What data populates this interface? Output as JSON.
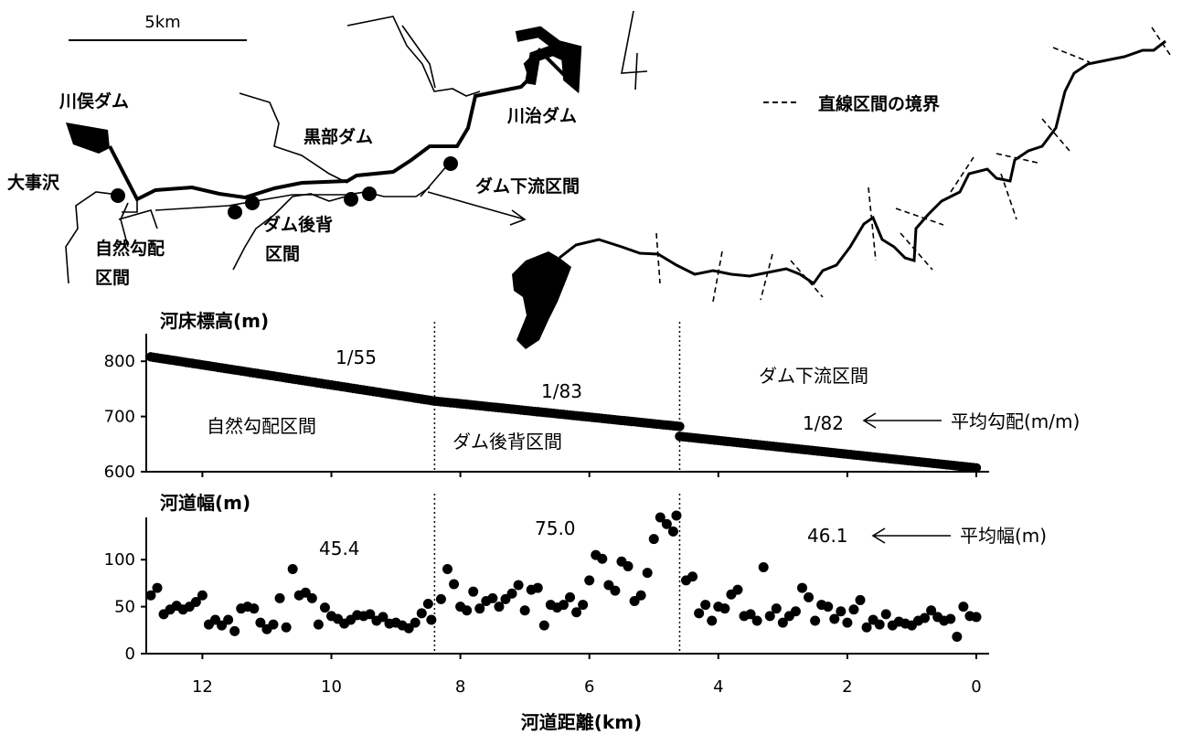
{
  "map": {
    "scale_label": "5km",
    "figure_number": "4",
    "legend_boundary": "直線区間の境界",
    "places": {
      "kawamata_dam": "川俣ダム",
      "kurobe_dam": "黒部ダム",
      "kawaji_dam": "川治ダム",
      "daijisawa": "大事沢",
      "dam_downstream_section": "ダム下流区間",
      "dam_backwater_section_l1": "ダム後背",
      "dam_backwater_section_l2": "区間",
      "natural_gradient_section_l1": "自然勾配",
      "natural_gradient_section_l2": "区間"
    }
  },
  "colors": {
    "ink": "#000000",
    "background": "#ffffff"
  },
  "chart_data": [
    {
      "type": "scatter",
      "title": "河床標高(m)",
      "xlabel": "河道距離(km)",
      "ylabel": "河床標高(m)",
      "xlim": [
        12.8,
        -0.2
      ],
      "ylim": [
        600,
        850
      ],
      "x_reversed": true,
      "yticks": [
        600,
        700,
        800
      ],
      "xticks": [
        12,
        10,
        8,
        6,
        4,
        2,
        0
      ],
      "boundaries_km": [
        8.4,
        4.6
      ],
      "sections": [
        {
          "name": "自然勾配区間",
          "x_start": 12.8,
          "x_end": 8.4,
          "gradient_label": "1/55"
        },
        {
          "name": "ダム後背区間",
          "x_start": 8.4,
          "x_end": 4.6,
          "gradient_label": "1/83"
        },
        {
          "name": "ダム下流区間",
          "x_start": 4.6,
          "x_end": 0.0,
          "gradient_label": "1/82"
        }
      ],
      "annotation": "平均勾配(m/m)",
      "series": [
        {
          "points": [
            [
              12.8,
              808
            ],
            [
              8.4,
              728
            ],
            [
              8.4,
              728
            ],
            [
              4.6,
              682
            ],
            [
              4.6,
              664
            ],
            [
              0.0,
              607
            ]
          ]
        }
      ]
    },
    {
      "type": "scatter",
      "title": "河道幅(m)",
      "xlabel": "河道距離(km)",
      "ylabel": "河道幅(m)",
      "xlim": [
        12.8,
        -0.2
      ],
      "ylim": [
        0,
        145
      ],
      "x_reversed": true,
      "yticks": [
        0,
        50,
        100
      ],
      "xticks": [
        12,
        10,
        8,
        6,
        4,
        2,
        0
      ],
      "boundaries_km": [
        8.4,
        4.6
      ],
      "annotation": "平均幅(m)",
      "section_means": [
        {
          "section": "自然勾配区間",
          "mean_label": "45.4"
        },
        {
          "section": "ダム後背区間",
          "mean_label": "75.0"
        },
        {
          "section": "ダム下流区間",
          "mean_label": "46.1"
        }
      ],
      "points": [
        [
          12.8,
          62
        ],
        [
          12.7,
          70
        ],
        [
          12.6,
          42
        ],
        [
          12.5,
          47
        ],
        [
          12.4,
          51
        ],
        [
          12.3,
          47
        ],
        [
          12.2,
          50
        ],
        [
          12.1,
          55
        ],
        [
          12.0,
          62
        ],
        [
          11.9,
          31
        ],
        [
          11.8,
          36
        ],
        [
          11.7,
          30
        ],
        [
          11.6,
          36
        ],
        [
          11.5,
          24
        ],
        [
          11.4,
          48
        ],
        [
          11.3,
          50
        ],
        [
          11.2,
          48
        ],
        [
          11.1,
          33
        ],
        [
          11.0,
          26
        ],
        [
          10.9,
          31
        ],
        [
          10.8,
          59
        ],
        [
          10.7,
          28
        ],
        [
          10.6,
          90
        ],
        [
          10.5,
          62
        ],
        [
          10.4,
          65
        ],
        [
          10.3,
          59
        ],
        [
          10.2,
          31
        ],
        [
          10.1,
          49
        ],
        [
          10.0,
          40
        ],
        [
          9.9,
          37
        ],
        [
          9.8,
          32
        ],
        [
          9.7,
          36
        ],
        [
          9.6,
          41
        ],
        [
          9.5,
          40
        ],
        [
          9.4,
          42
        ],
        [
          9.3,
          35
        ],
        [
          9.2,
          39
        ],
        [
          9.1,
          32
        ],
        [
          9.0,
          33
        ],
        [
          8.9,
          30
        ],
        [
          8.8,
          27
        ],
        [
          8.7,
          33
        ],
        [
          8.6,
          43
        ],
        [
          8.5,
          53
        ],
        [
          8.45,
          36
        ],
        [
          8.3,
          58
        ],
        [
          8.2,
          90
        ],
        [
          8.1,
          74
        ],
        [
          8.0,
          50
        ],
        [
          7.9,
          46
        ],
        [
          7.8,
          66
        ],
        [
          7.7,
          48
        ],
        [
          7.6,
          56
        ],
        [
          7.5,
          59
        ],
        [
          7.4,
          50
        ],
        [
          7.3,
          58
        ],
        [
          7.2,
          64
        ],
        [
          7.1,
          73
        ],
        [
          7.0,
          46
        ],
        [
          6.9,
          68
        ],
        [
          6.8,
          70
        ],
        [
          6.7,
          30
        ],
        [
          6.6,
          52
        ],
        [
          6.5,
          49
        ],
        [
          6.4,
          52
        ],
        [
          6.3,
          60
        ],
        [
          6.2,
          44
        ],
        [
          6.1,
          52
        ],
        [
          6.0,
          78
        ],
        [
          5.9,
          105
        ],
        [
          5.8,
          101
        ],
        [
          5.7,
          73
        ],
        [
          5.6,
          67
        ],
        [
          5.5,
          98
        ],
        [
          5.4,
          93
        ],
        [
          5.3,
          56
        ],
        [
          5.2,
          62
        ],
        [
          5.1,
          86
        ],
        [
          5.0,
          122
        ],
        [
          4.9,
          145
        ],
        [
          4.8,
          138
        ],
        [
          4.7,
          130
        ],
        [
          4.65,
          147
        ],
        [
          4.5,
          78
        ],
        [
          4.4,
          82
        ],
        [
          4.3,
          43
        ],
        [
          4.2,
          52
        ],
        [
          4.1,
          35
        ],
        [
          4.0,
          50
        ],
        [
          3.9,
          48
        ],
        [
          3.8,
          63
        ],
        [
          3.7,
          68
        ],
        [
          3.6,
          40
        ],
        [
          3.5,
          42
        ],
        [
          3.4,
          35
        ],
        [
          3.3,
          92
        ],
        [
          3.2,
          40
        ],
        [
          3.1,
          48
        ],
        [
          3.0,
          33
        ],
        [
          2.9,
          40
        ],
        [
          2.8,
          45
        ],
        [
          2.7,
          70
        ],
        [
          2.6,
          60
        ],
        [
          2.5,
          35
        ],
        [
          2.4,
          52
        ],
        [
          2.3,
          50
        ],
        [
          2.2,
          37
        ],
        [
          2.1,
          45
        ],
        [
          2.0,
          33
        ],
        [
          1.9,
          47
        ],
        [
          1.8,
          57
        ],
        [
          1.7,
          28
        ],
        [
          1.6,
          36
        ],
        [
          1.5,
          31
        ],
        [
          1.4,
          42
        ],
        [
          1.3,
          30
        ],
        [
          1.2,
          34
        ],
        [
          1.1,
          32
        ],
        [
          1.0,
          30
        ],
        [
          0.9,
          35
        ],
        [
          0.8,
          38
        ],
        [
          0.7,
          46
        ],
        [
          0.6,
          39
        ],
        [
          0.5,
          35
        ],
        [
          0.4,
          37
        ],
        [
          0.3,
          18
        ],
        [
          0.2,
          50
        ],
        [
          0.1,
          40
        ],
        [
          0.0,
          39
        ]
      ]
    }
  ]
}
